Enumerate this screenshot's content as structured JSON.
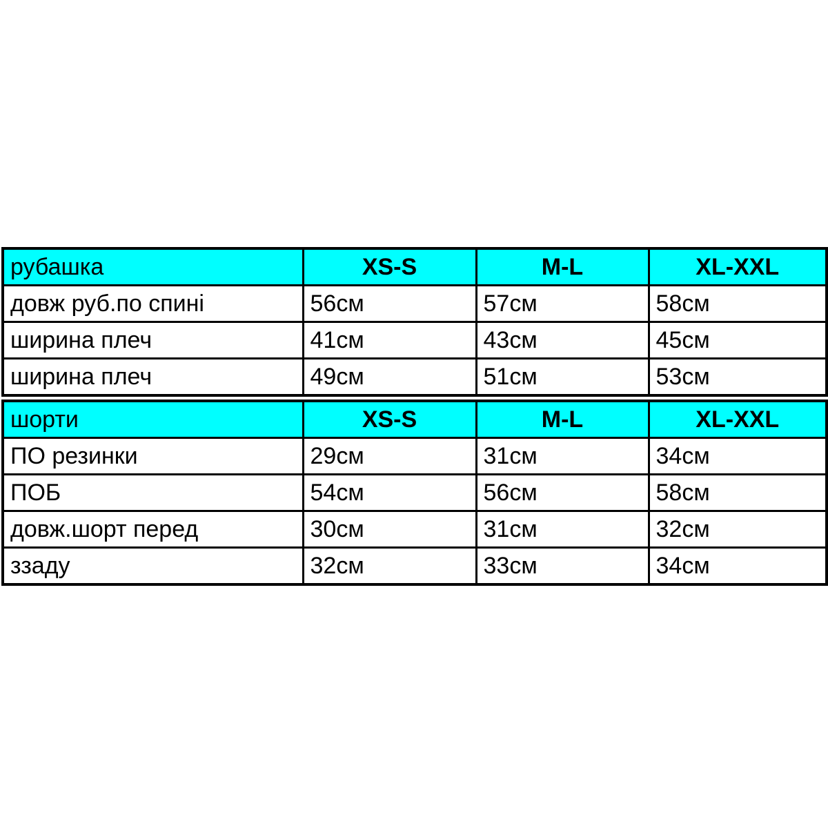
{
  "colors": {
    "header_bg": "#00ffff",
    "border": "#000000",
    "text": "#000000",
    "page_bg": "#ffffff"
  },
  "chart_data": [
    {
      "type": "table",
      "title": "рубашка",
      "columns": [
        "рубашка",
        "XS-S",
        "M-L",
        "XL-XXL"
      ],
      "rows": [
        [
          "довж руб.по спині",
          "56см",
          "57см",
          "58см"
        ],
        [
          "ширина плеч",
          "41см",
          "43см",
          "45см"
        ],
        [
          "ширина плеч",
          "49см",
          "51см",
          "53см"
        ]
      ]
    },
    {
      "type": "table",
      "title": "шорти",
      "columns": [
        "шорти",
        "XS-S",
        "M-L",
        "XL-XXL"
      ],
      "rows": [
        [
          "ПО резинки",
          "29см",
          "31см",
          "34см"
        ],
        [
          "ПОБ",
          "54см",
          "56см",
          "58см"
        ],
        [
          "довж.шорт перед",
          "30см",
          "31см",
          "32см"
        ],
        [
          "ззаду",
          "32см",
          "33см",
          "34см"
        ]
      ]
    }
  ]
}
